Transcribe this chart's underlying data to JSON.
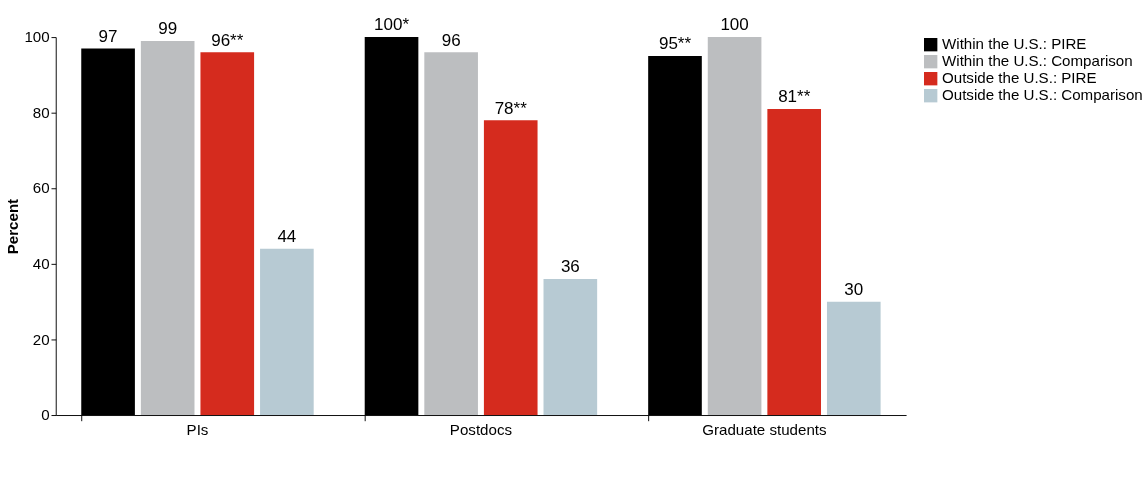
{
  "chart_data": {
    "type": "bar",
    "ylabel": "Percent",
    "categories": [
      "PIs",
      "Postdocs",
      "Graduate students"
    ],
    "ylim": [
      0,
      100
    ],
    "yticks": [
      0,
      20,
      40,
      60,
      80,
      100
    ],
    "legend": "right",
    "series": [
      {
        "name": "Within the U.S.: PIRE",
        "color": "#000000",
        "values": [
          97,
          100,
          95
        ],
        "value_labels": [
          "97",
          "100*",
          "95**"
        ]
      },
      {
        "name": "Within the U.S.: Comparison",
        "color": "#bcbec0",
        "values": [
          99,
          96,
          100
        ],
        "value_labels": [
          "99",
          "96",
          "100"
        ]
      },
      {
        "name": "Outside the U.S.: PIRE",
        "color": "#d52b1e",
        "values": [
          96,
          78,
          81
        ],
        "value_labels": [
          "96**",
          "78**",
          "81**"
        ]
      },
      {
        "name": "Outside the U.S.: Comparison",
        "color": "#b7cad3",
        "values": [
          44,
          36,
          30
        ],
        "value_labels": [
          "44",
          "36",
          "30"
        ]
      }
    ]
  }
}
